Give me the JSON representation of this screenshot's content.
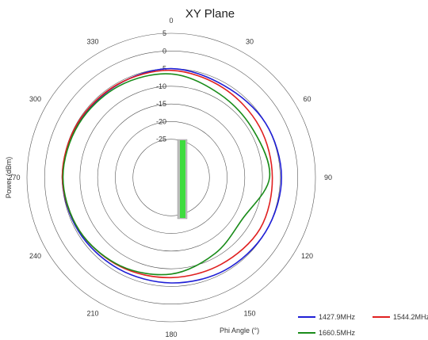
{
  "chart_data": {
    "type": "polar-line",
    "title": "XY Plane",
    "radial_axis_label": "Power (dBm)",
    "angular_axis_label": "Phi  Angle (°)",
    "radial_ticks": [
      "5",
      "0",
      "-5",
      "-10",
      "-15",
      "-20",
      "-25"
    ],
    "radial_range": [
      -30,
      5
    ],
    "angle_ticks": [
      "0",
      "30",
      "60",
      "90",
      "120",
      "150",
      "180",
      "210",
      "240",
      "270",
      "300",
      "330"
    ],
    "angle_direction": "clockwise",
    "angle_zero": "top",
    "legend_placement": "bottom-right",
    "series": [
      {
        "name": "1427.9MHz",
        "color": "#1f1fd6",
        "angles": [
          0,
          30,
          60,
          90,
          120,
          150,
          180,
          210,
          240,
          270,
          300,
          330
        ],
        "values": [
          -5,
          -5.8,
          -5,
          -4.6,
          -5,
          -5.5,
          -6,
          -6,
          -5.5,
          -5,
          -5.4,
          -5.5
        ]
      },
      {
        "name": "1544.2MHz",
        "color": "#e02020",
        "angles": [
          0,
          30,
          60,
          90,
          120,
          150,
          180,
          210,
          240,
          270,
          300,
          330
        ],
        "values": [
          -5.5,
          -6.5,
          -7,
          -7.2,
          -6.8,
          -7.5,
          -7.5,
          -6.8,
          -5.8,
          -5,
          -5.2,
          -5.4
        ]
      },
      {
        "name": "1660.5MHz",
        "color": "#1a8c1a",
        "angles": [
          0,
          30,
          60,
          90,
          120,
          150,
          180,
          210,
          240,
          270,
          300,
          330
        ],
        "values": [
          -6.5,
          -8.5,
          -9,
          -8,
          -12.5,
          -11,
          -8.5,
          -7,
          -5.8,
          -5.2,
          -5.6,
          -6
        ]
      }
    ]
  }
}
